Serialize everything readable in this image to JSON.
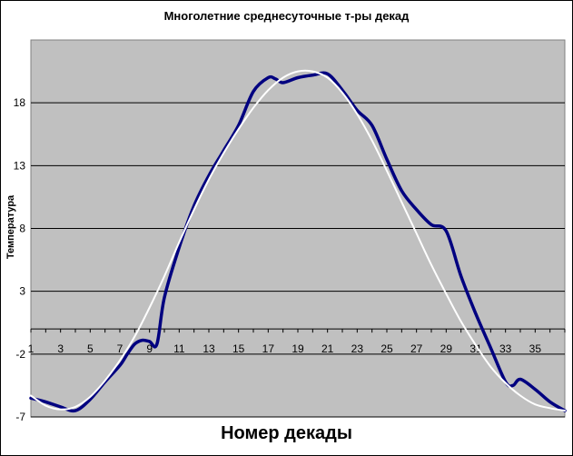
{
  "chart_data": {
    "type": "line",
    "title": "Многолетние среднесуточные т-ры декад",
    "xlabel": "Номер декады",
    "ylabel": "Температура",
    "xlim": [
      1,
      37
    ],
    "ylim": [
      -7,
      23
    ],
    "y_ticks": [
      18,
      13,
      8,
      3,
      -2,
      -7
    ],
    "x_tick_labels": [
      1,
      3,
      5,
      7,
      9,
      11,
      13,
      15,
      17,
      19,
      21,
      23,
      25,
      27,
      29,
      31,
      33,
      35
    ],
    "x_tick_interval": 1,
    "grid": true,
    "legend": "none",
    "colors": {
      "plot_bg": "#c0c0c0",
      "observed": "#000080",
      "fitted": "#ffffff",
      "grid": "#000000"
    },
    "series": [
      {
        "x": [
          1,
          2,
          3,
          4,
          5,
          6,
          7,
          7.5,
          8,
          8.5,
          9,
          9.5,
          10,
          11,
          12,
          13,
          14,
          15,
          16,
          17,
          17.5,
          18,
          19,
          20,
          21,
          22,
          23,
          24,
          25,
          26,
          27,
          28,
          29,
          30,
          31,
          32,
          33,
          33.5,
          34,
          35,
          36,
          37
        ],
        "values": [
          -5.5,
          -5.8,
          -6.2,
          -6.5,
          -5.6,
          -4.2,
          -2.9,
          -2.0,
          -1.2,
          -0.9,
          -1.0,
          -1.2,
          2.5,
          6.5,
          9.8,
          12.2,
          14.2,
          16.2,
          18.9,
          20.0,
          19.9,
          19.6,
          20.0,
          20.2,
          20.3,
          19.0,
          17.4,
          16.2,
          13.5,
          11.0,
          9.5,
          8.3,
          7.8,
          4.2,
          1.2,
          -1.5,
          -4.2,
          -4.5,
          -4.0,
          -4.8,
          -5.8,
          -6.5
        ]
      },
      {
        "x": [
          1,
          2,
          3,
          4,
          5,
          6,
          7,
          8,
          9,
          10,
          11,
          12,
          13,
          14,
          15,
          16,
          17,
          18,
          19,
          20,
          21,
          22,
          23,
          24,
          25,
          26,
          27,
          28,
          29,
          30,
          31,
          32,
          33,
          34,
          35,
          36,
          37
        ],
        "values": [
          -5.3,
          -6.1,
          -6.4,
          -6.2,
          -5.4,
          -4.1,
          -2.5,
          -0.6,
          1.7,
          4.2,
          6.9,
          9.5,
          11.9,
          14.0,
          15.9,
          17.6,
          19.0,
          20.0,
          20.5,
          20.5,
          20.0,
          18.8,
          17.1,
          15.0,
          12.6,
          10.1,
          7.6,
          5.1,
          2.8,
          0.6,
          -1.3,
          -3.0,
          -4.3,
          -5.3,
          -6.0,
          -6.3,
          -6.5
        ]
      }
    ]
  }
}
